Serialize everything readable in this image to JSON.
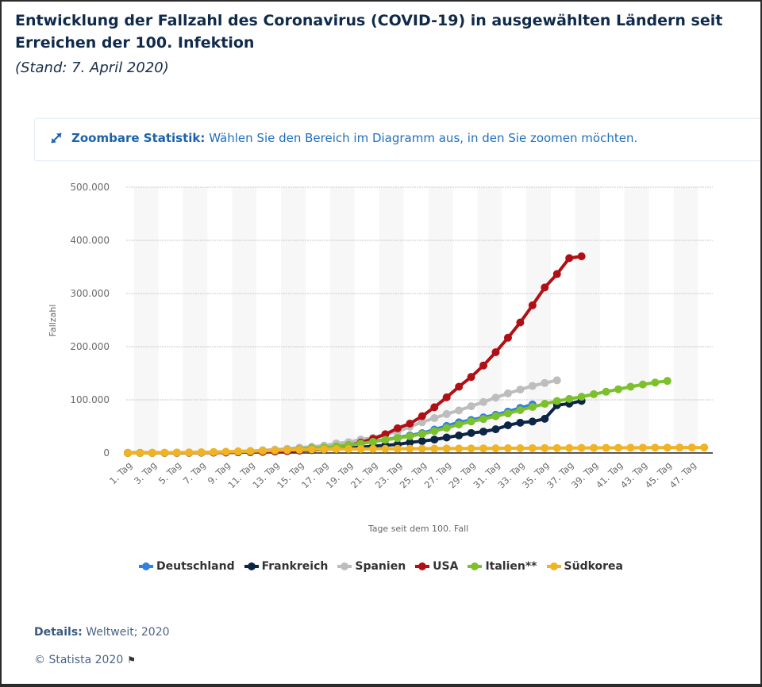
{
  "header": {
    "title": "Entwicklung der Fallzahl des Coronavirus (COVID-19) in ausgewählten Ländern seit Erreichen der 100. Infektion",
    "subtitle": "(Stand: 7. April 2020)"
  },
  "zoom_hint": {
    "icon": "expand-arrows-icon",
    "label": "Zoombare Statistik:",
    "text": "Wählen Sie den Bereich im Diagramm aus, in den Sie zoomen möchten."
  },
  "footer": {
    "details_label": "Details:",
    "details_text": "Weltweit; 2020",
    "copyright": "© Statista 2020",
    "flag_icon": "flag-icon"
  },
  "chart_data": {
    "type": "line",
    "title": "Entwicklung der Fallzahl des Coronavirus (COVID-19) in ausgewählten Ländern seit Erreichen der 100. Infektion",
    "xlabel": "Tage seit dem 100. Fall",
    "ylabel": "Fallzahl",
    "ylim": [
      0,
      500000
    ],
    "yticks": [
      0,
      100000,
      200000,
      300000,
      400000,
      500000
    ],
    "ytick_labels": [
      "0",
      "100.000",
      "200.000",
      "300.000",
      "400.000",
      "500.000"
    ],
    "x_categories_count": 48,
    "xtick_labels": [
      "1. Tag",
      "3. Tag",
      "5. Tag",
      "7. Tag",
      "9. Tag",
      "11. Tag",
      "13. Tag",
      "15. Tag",
      "17. Tag",
      "19. Tag",
      "21. Tag",
      "23. Tag",
      "25. Tag",
      "27. Tag",
      "29. Tag",
      "31. Tag",
      "33. Tag",
      "35. Tag",
      "37. Tag",
      "39. Tag",
      "41. Tag",
      "43. Tag",
      "45. Tag",
      "47. Tag"
    ],
    "grid": true,
    "legend_position": "bottom",
    "series": [
      {
        "name": "Deutschland",
        "color": "#2f80e0",
        "values": [
          130,
          159,
          196,
          262,
          482,
          670,
          799,
          1040,
          1176,
          1457,
          1908,
          2078,
          3675,
          4585,
          5795,
          7272,
          9257,
          12327,
          15320,
          19848,
          22213,
          24873,
          29056,
          32986,
          37323,
          43938,
          50871,
          57695,
          62095,
          66885,
          71808,
          77872,
          84794,
          91159
        ]
      },
      {
        "name": "Frankreich",
        "color": "#0d2545",
        "values": [
          100,
          130,
          191,
          212,
          285,
          423,
          653,
          949,
          1126,
          1412,
          1784,
          2281,
          2876,
          3661,
          4499,
          5423,
          6633,
          7730,
          9134,
          10995,
          12612,
          14459,
          16018,
          19856,
          22302,
          25233,
          29155,
          32964,
          37575,
          40174,
          44550,
          52128,
          56989,
          59105,
          64338,
          89953,
          92839,
          98010
        ]
      },
      {
        "name": "Spanien",
        "color": "#bdbdbd",
        "values": [
          120,
          165,
          222,
          259,
          400,
          500,
          673,
          1073,
          1695,
          2277,
          3146,
          5232,
          6391,
          7798,
          9942,
          11748,
          13910,
          17963,
          20410,
          25374,
          28603,
          35136,
          39885,
          49515,
          57786,
          65719,
          73235,
          80110,
          87956,
          95923,
          104118,
          112065,
          119199,
          126168,
          131646,
          136675
        ]
      },
      {
        "name": "USA",
        "color": "#b01015",
        "values": [
          100,
          124,
          158,
          221,
          319,
          435,
          541,
          704,
          994,
          1301,
          1630,
          2183,
          2770,
          3613,
          4596,
          6344,
          7678,
          9415,
          14250,
          19624,
          26747,
          35206,
          46442,
          55231,
          69194,
          85991,
          104686,
          124665,
          143025,
          164620,
          189618,
          216721,
          245540,
          277828,
          311357,
          336673,
          366614,
          370000
        ]
      },
      {
        "name": "Italien**",
        "color": "#7cc02c",
        "values": [
          155,
          229,
          322,
          453,
          655,
          888,
          1128,
          1694,
          2036,
          2502,
          3089,
          3858,
          4636,
          5883,
          7375,
          9172,
          10149,
          12462,
          15113,
          17660,
          21157,
          24747,
          27980,
          31506,
          35713,
          41035,
          47021,
          53578,
          59138,
          63927,
          69176,
          74386,
          80589,
          86498,
          92472,
          97689,
          101739,
          105792,
          110574,
          115242,
          119827,
          124632,
          128948,
          132547,
          135586
        ]
      },
      {
        "name": "Südkorea",
        "color": "#f0b323",
        "values": [
          104,
          204,
          433,
          602,
          833,
          977,
          1261,
          1766,
          2337,
          3150,
          3736,
          4335,
          5186,
          5621,
          6088,
          6593,
          7041,
          7314,
          7478,
          7513,
          7755,
          7869,
          7979,
          8086,
          8162,
          8236,
          8320,
          8413,
          8565,
          8652,
          8799,
          8897,
          8961,
          9037,
          9137,
          9241,
          9332,
          9478,
          9583,
          9661,
          9786,
          9887,
          9976,
          10062,
          10156,
          10237,
          10284,
          10331
        ]
      }
    ]
  }
}
